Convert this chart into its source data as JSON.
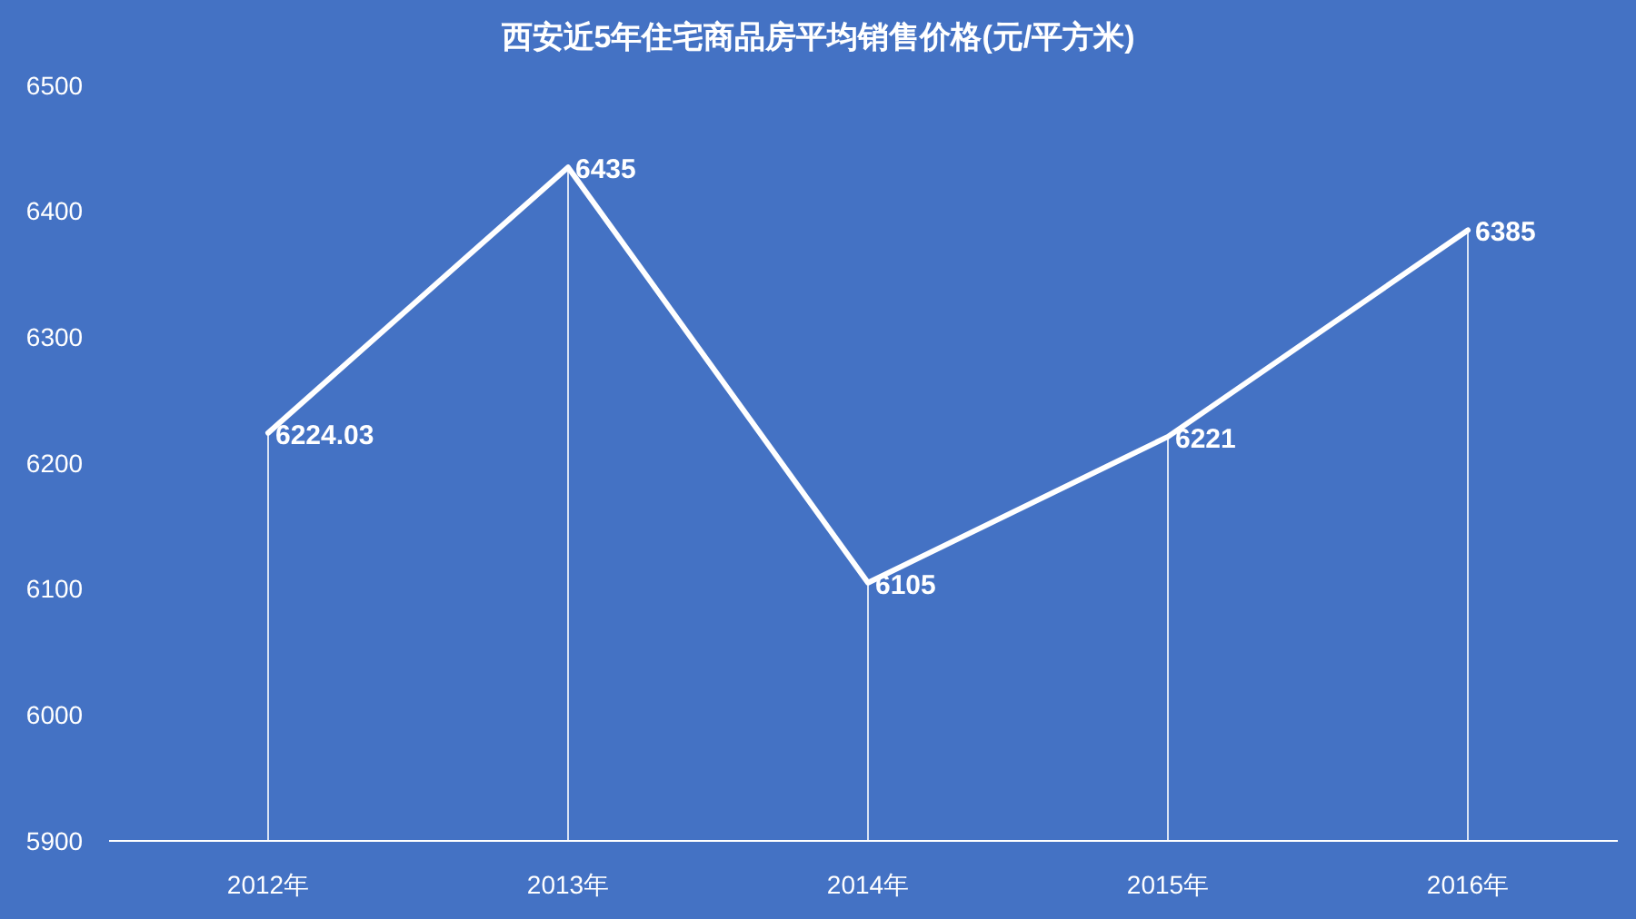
{
  "chart_data": {
    "type": "line",
    "title": "西安近5年住宅商品房平均销售价格(元/平方米)",
    "categories": [
      "2012年",
      "2013年",
      "2014年",
      "2015年",
      "2016年"
    ],
    "series": [
      {
        "color": "#ffffff",
        "values": [
          6224.03,
          6435,
          6105,
          6221,
          6385
        ]
      }
    ],
    "ylim": [
      5900,
      6500
    ],
    "yticks": [
      5900,
      6000,
      6100,
      6200,
      6300,
      6400,
      6500
    ],
    "data_labels": true,
    "grid": "x",
    "marker": "none",
    "line_style": "solid"
  }
}
